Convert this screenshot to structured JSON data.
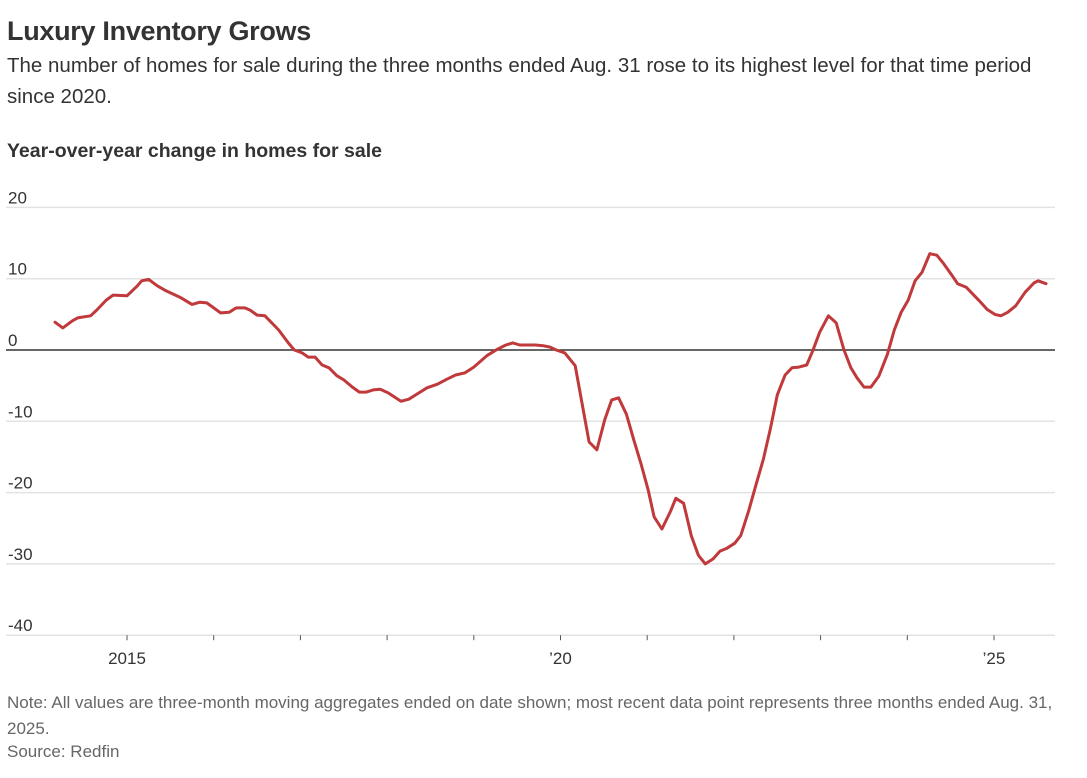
{
  "chart_data": {
    "type": "line",
    "title": "Luxury Inventory Grows",
    "subtitle": "The number of homes for sale during the three months ended Aug. 31 rose to its highest level for that time period since 2020.",
    "ylabel": "Year-over-year change in homes for sale",
    "xlabel": "",
    "ylim": [
      -40,
      20
    ],
    "xlim": [
      2014.0,
      2025.75
    ],
    "grid": true,
    "yticks": [
      {
        "value": 20,
        "label": "20"
      },
      {
        "value": 10,
        "label": "10"
      },
      {
        "value": 0,
        "label": "0"
      },
      {
        "value": -10,
        "label": "-10"
      },
      {
        "value": -20,
        "label": "-20"
      },
      {
        "value": -30,
        "label": "-30"
      },
      {
        "value": -40,
        "label": "-40"
      }
    ],
    "xticks": [
      {
        "value": 2015,
        "label": "2015"
      },
      {
        "value": 2016,
        "label": ""
      },
      {
        "value": 2017,
        "label": ""
      },
      {
        "value": 2018,
        "label": ""
      },
      {
        "value": 2019,
        "label": ""
      },
      {
        "value": 2020,
        "label": "’20"
      },
      {
        "value": 2021,
        "label": ""
      },
      {
        "value": 2022,
        "label": ""
      },
      {
        "value": 2023,
        "label": ""
      },
      {
        "value": 2024,
        "label": ""
      },
      {
        "value": 2025,
        "label": "’25"
      }
    ],
    "series": [
      {
        "name": "Year-over-year change in luxury homes for sale",
        "color": "#c0393b",
        "x": [
          2014.17,
          2014.26,
          2014.37,
          2014.43,
          2014.58,
          2014.65,
          2014.76,
          2014.84,
          2015.0,
          2015.12,
          2015.17,
          2015.25,
          2015.35,
          2015.45,
          2015.61,
          2015.75,
          2015.84,
          2015.92,
          2016.08,
          2016.18,
          2016.26,
          2016.36,
          2016.42,
          2016.5,
          2016.59,
          2016.75,
          2016.86,
          2016.93,
          2017.02,
          2017.09,
          2017.17,
          2017.25,
          2017.33,
          2017.42,
          2017.5,
          2017.6,
          2017.68,
          2017.76,
          2017.84,
          2017.92,
          2018.01,
          2018.16,
          2018.25,
          2018.33,
          2018.46,
          2018.58,
          2018.69,
          2018.79,
          2018.9,
          2019.0,
          2019.15,
          2019.27,
          2019.37,
          2019.45,
          2019.53,
          2019.6,
          2019.71,
          2019.8,
          2019.88,
          2019.95,
          2020.05,
          2020.17,
          2020.25,
          2020.33,
          2020.42,
          2020.51,
          2020.59,
          2020.67,
          2020.76,
          2020.85,
          2020.93,
          2021.01,
          2021.08,
          2021.17,
          2021.27,
          2021.33,
          2021.42,
          2021.51,
          2021.59,
          2021.67,
          2021.76,
          2021.84,
          2021.92,
          2022.01,
          2022.08,
          2022.17,
          2022.25,
          2022.34,
          2022.42,
          2022.5,
          2022.59,
          2022.67,
          2022.75,
          2022.84,
          2022.91,
          2022.99,
          2023.09,
          2023.18,
          2023.27,
          2023.35,
          2023.42,
          2023.5,
          2023.58,
          2023.67,
          2023.77,
          2023.85,
          2023.93,
          2024.01,
          2024.09,
          2024.17,
          2024.26,
          2024.34,
          2024.42,
          2024.53,
          2024.58,
          2024.68,
          2024.83,
          2024.92,
          2025.01,
          2025.08,
          2025.16,
          2025.25,
          2025.36,
          2025.46,
          2025.51,
          2025.6
        ],
        "values": [
          3.9,
          3.1,
          4.1,
          4.5,
          4.8,
          5.6,
          7.0,
          7.7,
          7.6,
          9.0,
          9.7,
          9.9,
          9.0,
          8.3,
          7.4,
          6.4,
          6.7,
          6.6,
          5.2,
          5.3,
          5.9,
          5.9,
          5.6,
          4.9,
          4.8,
          2.8,
          1.0,
          0,
          -0.4,
          -1.0,
          -1.0,
          -2.1,
          -2.5,
          -3.6,
          -4.2,
          -5.2,
          -5.9,
          -5.9,
          -5.6,
          -5.5,
          -6.0,
          -7.2,
          -6.9,
          -6.3,
          -5.3,
          -4.8,
          -4.1,
          -3.5,
          -3.2,
          -2.4,
          -0.8,
          0.1,
          0.7,
          1.0,
          0.7,
          0.7,
          0.7,
          0.6,
          0.4,
          0,
          -0.4,
          -2.2,
          -7.6,
          -12.9,
          -14.0,
          -9.8,
          -7.0,
          -6.7,
          -9.0,
          -12.8,
          -16.0,
          -19.6,
          -23.4,
          -25.1,
          -22.6,
          -20.8,
          -21.5,
          -26.1,
          -28.8,
          -30.0,
          -29.3,
          -28.2,
          -27.8,
          -27.1,
          -26.0,
          -22.6,
          -19.1,
          -15.3,
          -11.1,
          -6.3,
          -3.5,
          -2.5,
          -2.4,
          -2.1,
          -0.1,
          2.5,
          4.8,
          3.8,
          0,
          -2.5,
          -3.9,
          -5.2,
          -5.2,
          -3.7,
          -0.6,
          2.8,
          5.3,
          7.0,
          9.7,
          10.9,
          13.5,
          13.3,
          12.1,
          10.2,
          9.3,
          8.8,
          6.9,
          5.7,
          5.0,
          4.8,
          5.3,
          6.2,
          8.1,
          9.4,
          9.7,
          9.3
        ]
      }
    ]
  },
  "note": "Note: All values are three-month moving aggregates ended on date shown; most recent data point represents three months ended Aug. 31, 2025.",
  "source": "Source: Redfin"
}
